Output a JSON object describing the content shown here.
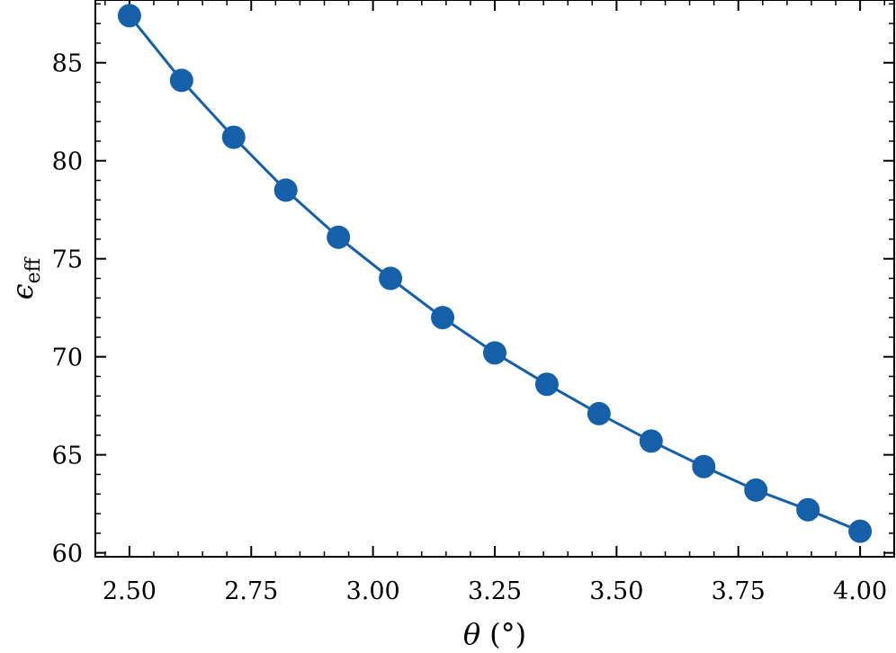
{
  "chart_data": {
    "type": "line",
    "title": "",
    "xlabel": "θ (°)",
    "xlabel_symbol": "θ",
    "xlabel_unit": "(°)",
    "ylabel": "ϵeff",
    "ylabel_symbol": "ϵ",
    "ylabel_subscript": "eff",
    "xlim": [
      2.43,
      4.07
    ],
    "ylim": [
      59.8,
      88.2
    ],
    "x_ticks": [
      2.5,
      2.75,
      3.0,
      3.25,
      3.5,
      3.75,
      4.0
    ],
    "x_tick_labels": [
      "2.50",
      "2.75",
      "3.00",
      "3.25",
      "3.50",
      "3.75",
      "4.00"
    ],
    "y_ticks": [
      60,
      65,
      70,
      75,
      80,
      85
    ],
    "y_tick_labels": [
      "60",
      "65",
      "70",
      "75",
      "80",
      "85"
    ],
    "grid": false,
    "legend": false,
    "series": [
      {
        "color": "#1560a8",
        "marker": "circle",
        "x": [
          2.5,
          2.607,
          2.714,
          2.821,
          2.929,
          3.036,
          3.143,
          3.25,
          3.357,
          3.464,
          3.571,
          3.679,
          3.786,
          3.893,
          4.0
        ],
        "y": [
          87.4,
          84.1,
          81.2,
          78.5,
          76.1,
          74.0,
          72.0,
          70.2,
          68.6,
          67.1,
          65.7,
          64.4,
          63.2,
          62.2,
          61.1
        ]
      }
    ]
  }
}
